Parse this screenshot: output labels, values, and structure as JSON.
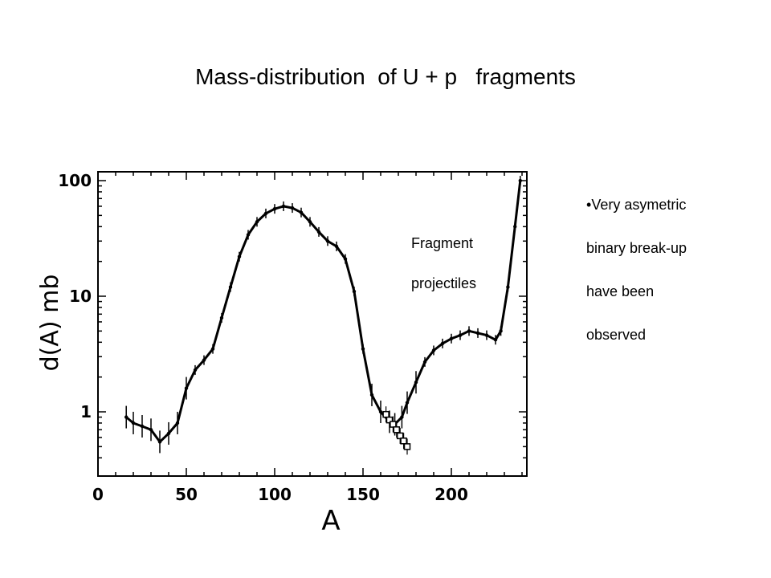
{
  "slide": {
    "title": "Mass-distribution  of U + p   fragments",
    "annotation": [
      "Fragment",
      "projectiles"
    ],
    "bullet_prefix": "•",
    "bullet_lines": [
      "Very asymetric",
      "binary break-up",
      "have been",
      "observed"
    ]
  },
  "chart_data": {
    "type": "scatter",
    "title": "",
    "xlabel": "A",
    "ylabel": "d(A) mb",
    "xlim": [
      0,
      245
    ],
    "ylim": [
      0.35,
      100
    ],
    "yscale": "log",
    "xticks": [
      0,
      50,
      100,
      150,
      200
    ],
    "yticks": [
      1,
      10,
      100
    ],
    "ytick_labels": [
      "1",
      "10",
      "100"
    ],
    "series": [
      {
        "marker": "filled-line-with-error-bars",
        "x": [
          16,
          20,
          25,
          30,
          35,
          40,
          45,
          50,
          55,
          60,
          65,
          70,
          75,
          80,
          85,
          90,
          95,
          100,
          105,
          110,
          115,
          120,
          125,
          130,
          135,
          140,
          145,
          150,
          155,
          160,
          165,
          168,
          172,
          175,
          180,
          185,
          190,
          195,
          200,
          205,
          210,
          215,
          220,
          225,
          228,
          232,
          236,
          239
        ],
        "y": [
          0.9,
          0.8,
          0.75,
          0.7,
          0.55,
          0.65,
          0.8,
          1.6,
          2.3,
          2.8,
          3.5,
          6.5,
          12,
          22,
          34,
          44,
          52,
          57,
          60,
          58,
          53,
          44,
          36,
          30,
          27,
          21,
          11,
          3.5,
          1.4,
          1.0,
          0.82,
          0.78,
          0.9,
          1.2,
          1.8,
          2.7,
          3.4,
          3.9,
          4.3,
          4.6,
          5.0,
          4.8,
          4.6,
          4.2,
          5.0,
          12,
          40,
          100
        ]
      },
      {
        "marker": "open-square",
        "x": [
          163,
          165,
          167,
          169,
          171,
          173,
          175
        ],
        "y": [
          0.95,
          0.85,
          0.78,
          0.7,
          0.62,
          0.56,
          0.5
        ]
      }
    ]
  }
}
